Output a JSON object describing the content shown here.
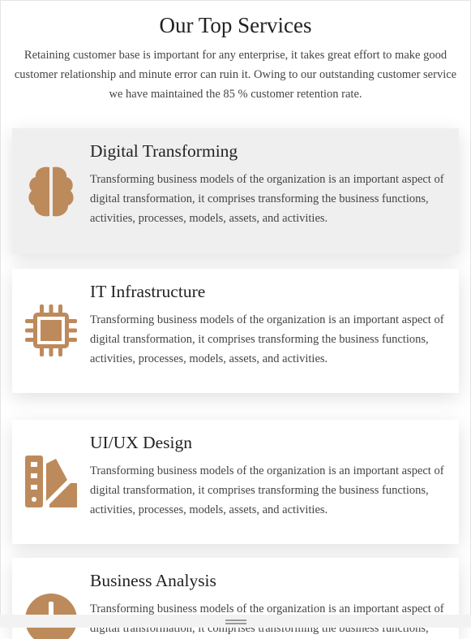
{
  "header": {
    "title": "Our Top Services",
    "description": "Retaining customer base is important for any enterprise, it takes great effort to make good customer relationship and minute error can ruin it. Owing to our outstanding customer service we have maintained the 85 % customer retention rate."
  },
  "services": [
    {
      "title": "Digital Transforming",
      "description": "Transforming business models of the organization is an important aspect of digital transformation, it comprises transforming the business functions, activities, processes, models, assets, and activities."
    },
    {
      "title": "IT Infrastructure",
      "description": "Transforming business models of the organization is an important aspect of digital transformation, it comprises transforming the business functions, activities, processes, models, assets, and activities."
    },
    {
      "title": "UI/UX Design",
      "description": "Transforming business models of the organization is an important aspect of digital transformation, it comprises transforming the business functions, activities, processes, models, assets, and activities."
    },
    {
      "title": "Business Analysis",
      "description": "Transforming business models of the organization is an important aspect of digital transformation, it comprises transforming the business functions, activities, processes, models, assets, and activities."
    }
  ]
}
